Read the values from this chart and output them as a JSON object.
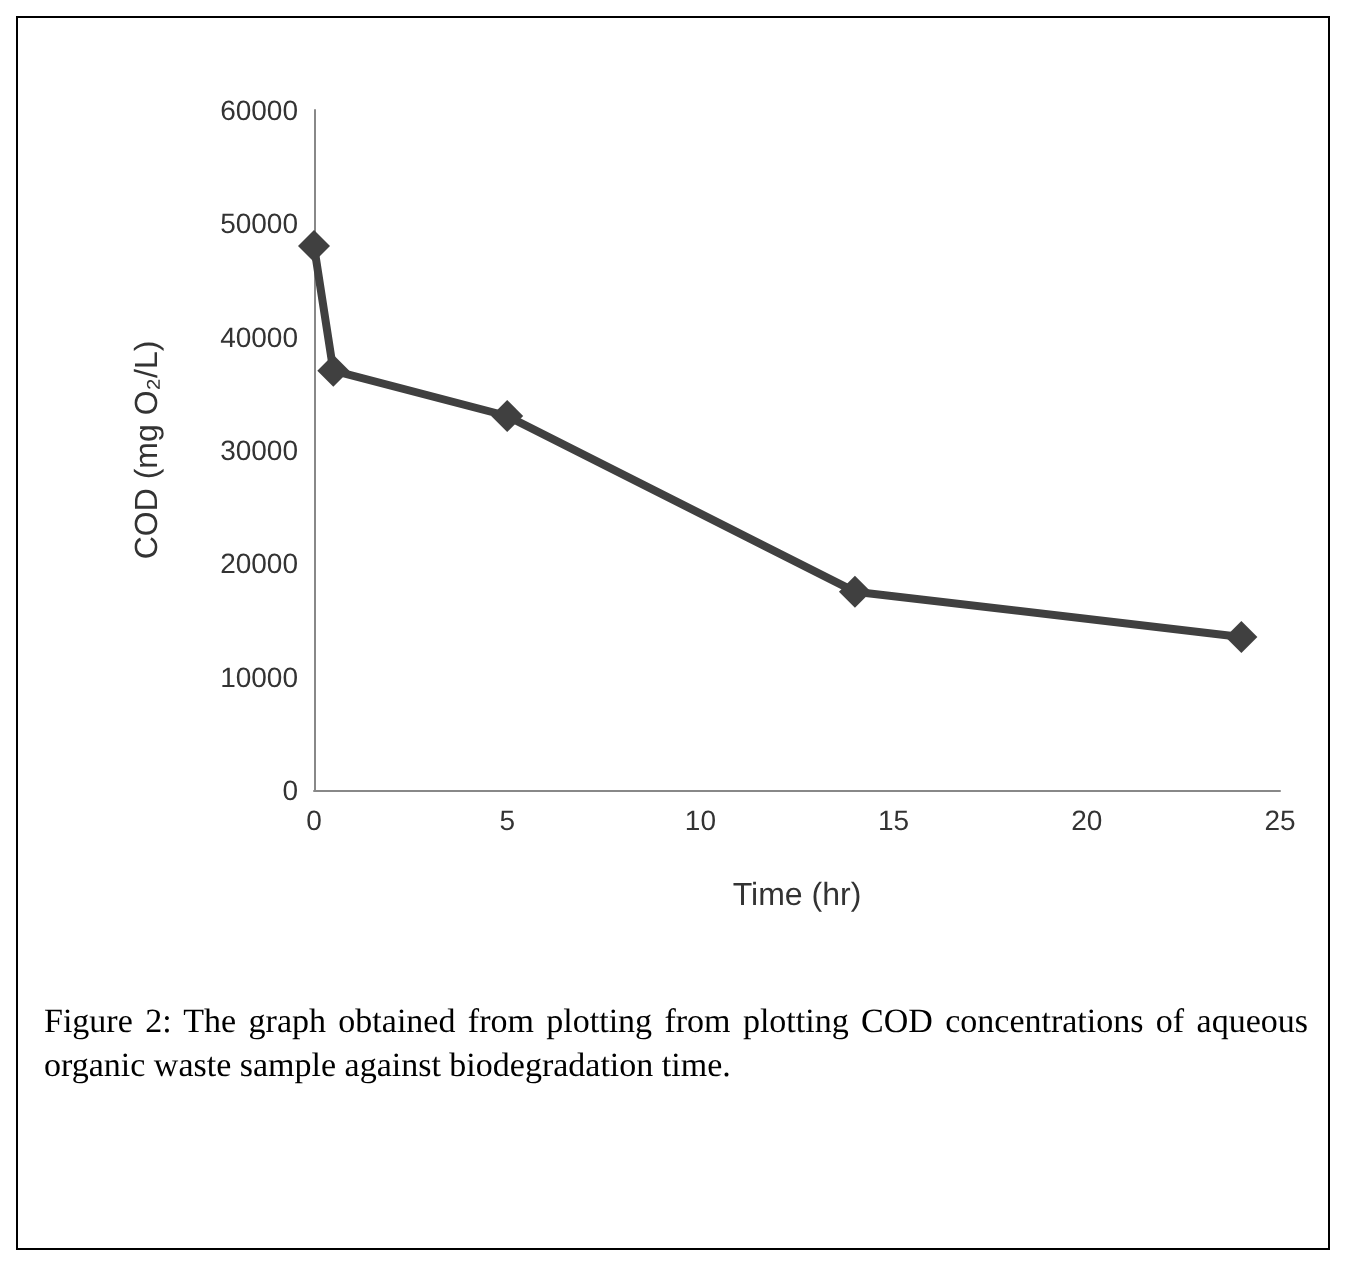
{
  "chart_data": {
    "type": "line",
    "xlabel": "Time (hr)",
    "ylabel": "COD (mg O₂/L)",
    "annotations": [
      "Figure 2: The graph obtained from plotting from plotting COD concentrations of aqueous organic waste sample against biodegradation time."
    ],
    "x": [
      0,
      0.5,
      5,
      14,
      24
    ],
    "series": [
      {
        "color": "#404040",
        "values": [
          48000,
          37000,
          33000,
          17500,
          13500
        ]
      }
    ],
    "xlim": [
      0,
      25
    ],
    "xticks": [
      0,
      5,
      10,
      15,
      20,
      25
    ],
    "ylim": [
      0,
      60000
    ],
    "yticks": [
      0,
      10000,
      20000,
      30000,
      40000,
      50000,
      60000
    ],
    "grid": false,
    "marker": "diamond",
    "line_style": "solid"
  }
}
